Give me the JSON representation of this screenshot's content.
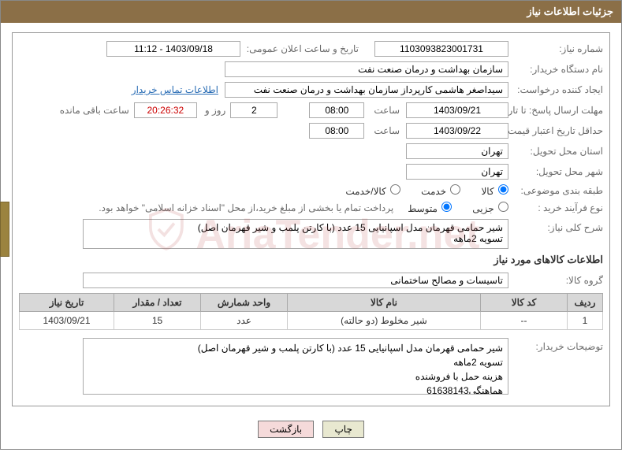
{
  "header": {
    "title": "جزئیات اطلاعات نیاز"
  },
  "labels": {
    "need_no": "شماره نیاز:",
    "announce_dt": "تاریخ و ساعت اعلان عمومی:",
    "buyer_org": "نام دستگاه خریدار:",
    "requester": "ایجاد کننده درخواست:",
    "resp_deadline": "مهلت ارسال پاسخ:",
    "until": "تا تاریخ:",
    "time": "ساعت",
    "days_and": "روز و",
    "remaining": "ساعت باقی مانده",
    "quote_validity": "حداقل تاریخ اعتبار قیمت:",
    "delivery_province": "استان محل تحویل:",
    "delivery_city": "شهر محل تحویل:",
    "subject_class": "طبقه بندی موضوعی:",
    "purchase_type": "نوع فرآیند خرید :",
    "need_summary": "شرح کلی نیاز:",
    "goods_info": "اطلاعات کالاهای مورد نیاز",
    "goods_group": "گروه کالا:",
    "buyer_notes": "توضیحات خریدار:",
    "contact_link": "اطلاعات تماس خریدار"
  },
  "values": {
    "need_no": "1103093823001731",
    "announce_dt": "1403/09/18 - 11:12",
    "buyer_org": "سازمان بهداشت و درمان صنعت نفت",
    "requester": "سیداصغر هاشمی کارپرداز سازمان بهداشت و درمان صنعت نفت",
    "resp_date": "1403/09/21",
    "resp_time": "08:00",
    "days_left": "2",
    "countdown": "20:26:32",
    "quote_date": "1403/09/22",
    "quote_time": "08:00",
    "province": "تهران",
    "city": "تهران",
    "need_summary": "شیر حمامی قهرمان مدل اسپانیایی 15 عدد (با کارتن پلمب و شیر قهرمان اصل)\nتسویه 2ماهه",
    "goods_group": "تاسیسات و مصالح ساختمانی",
    "buyer_notes": "شیر حمامی قهرمان مدل اسپانیایی 15 عدد (با کارتن پلمب و شیر قهرمان اصل)\nتسویه 2ماهه\nهزینه حمل با فروشنده\nهماهنگی61638143"
  },
  "radios": {
    "subject": {
      "opt1": "کالا",
      "opt2": "خدمت",
      "opt3": "کالا/خدمت",
      "selected": 1
    },
    "purchase": {
      "opt1": "جزیی",
      "opt2": "متوسط",
      "selected": 2,
      "note": "پرداخت تمام یا بخشی از مبلغ خرید،از محل \"اسناد خزانه اسلامی\" خواهد بود."
    }
  },
  "table": {
    "headers": {
      "row": "ردیف",
      "code": "کد کالا",
      "name": "نام کالا",
      "unit": "واحد شمارش",
      "qty": "تعداد / مقدار",
      "need_date": "تاریخ نیاز"
    },
    "rows": [
      {
        "idx": "1",
        "code": "--",
        "name": "شیر مخلوط (دو حالته)",
        "unit": "عدد",
        "qty": "15",
        "need_date": "1403/09/21"
      }
    ],
    "col_widths": {
      "row": "45px",
      "code": "110px",
      "name": "auto",
      "unit": "110px",
      "qty": "110px",
      "need_date": "120px"
    }
  },
  "buttons": {
    "print": "چاپ",
    "back": "بازگشت"
  },
  "watermark": "AriaTender.net",
  "colors": {
    "header_bg": "#8b6f47",
    "header_fg": "#ffffff",
    "label": "#6b6b6b",
    "link": "#2a6db5",
    "th_bg": "#d8d8d8",
    "border": "#aaaaaa",
    "countdown": "#cc0000",
    "side_tab": "#9b833f"
  }
}
